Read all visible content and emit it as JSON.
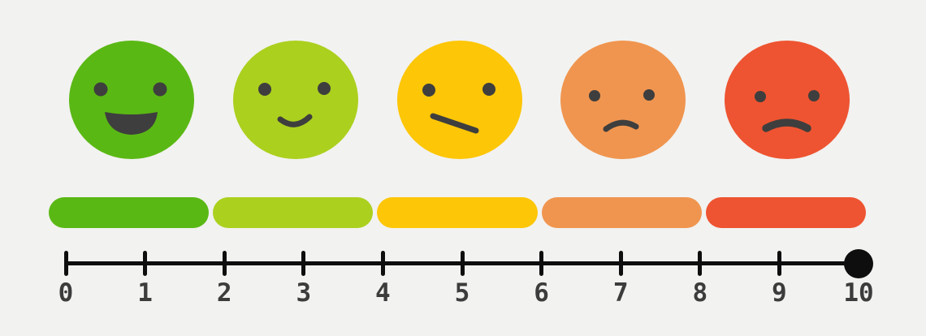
{
  "background": "#f2f2f0",
  "feature_color": "#3e3e3e",
  "levels": [
    {
      "name": "very-satisfied",
      "expression": "big-open-smile",
      "color": "#5ab814"
    },
    {
      "name": "satisfied",
      "expression": "slight-smile",
      "color": "#abd01e"
    },
    {
      "name": "neutral",
      "expression": "skeptical-line",
      "color": "#fdc607"
    },
    {
      "name": "dissatisfied",
      "expression": "frown",
      "color": "#f0954f"
    },
    {
      "name": "very-dissatisfied",
      "expression": "deep-frown",
      "color": "#ee5431"
    }
  ],
  "axis": {
    "color": "#0e0e0e",
    "label_color": "#3c3c3c",
    "min": 0,
    "max": 10,
    "tick_labels": [
      "0",
      "1",
      "2",
      "3",
      "4",
      "5",
      "6",
      "7",
      "8",
      "9",
      "10"
    ],
    "marker_value": "10"
  }
}
